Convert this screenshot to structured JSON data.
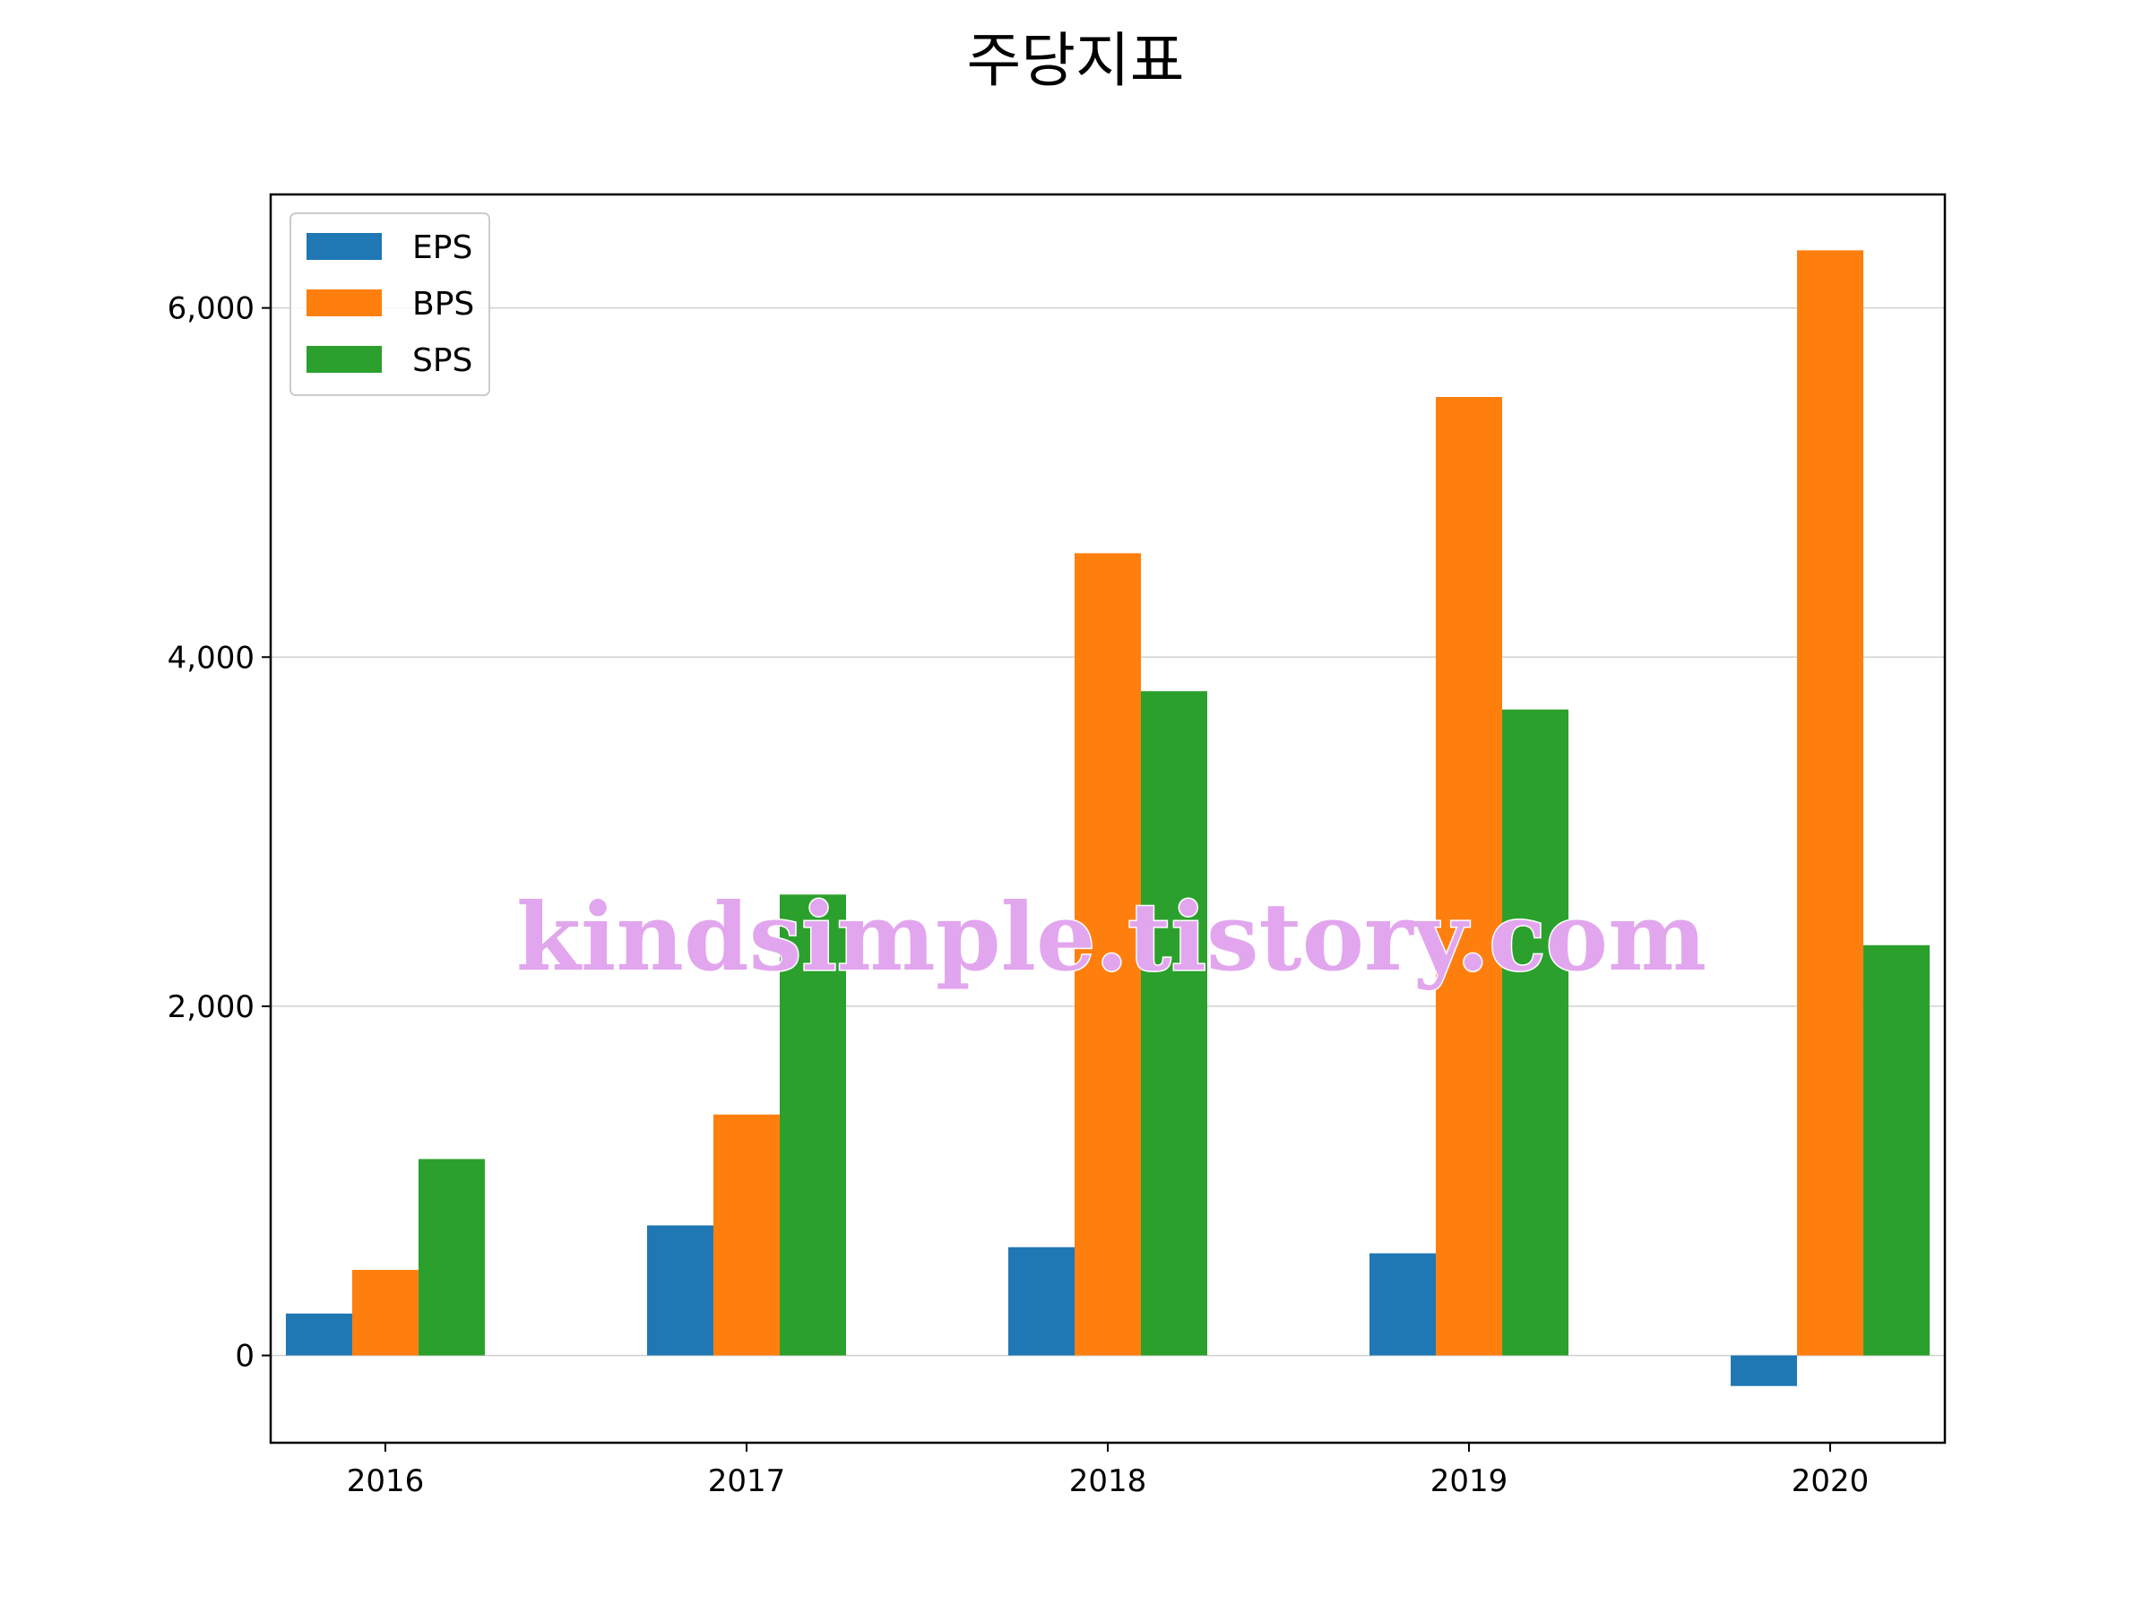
{
  "chart_data": {
    "type": "bar",
    "title": "주당지표",
    "xlabel": "",
    "ylabel": "",
    "categories": [
      "2016",
      "2017",
      "2018",
      "2019",
      "2020"
    ],
    "series": [
      {
        "name": "EPS",
        "color": "#1f77b4",
        "values": [
          240,
          745,
          620,
          585,
          -175
        ]
      },
      {
        "name": "BPS",
        "color": "#ff7f0e",
        "values": [
          490,
          1380,
          4595,
          5490,
          6330
        ]
      },
      {
        "name": "SPS",
        "color": "#2ca02c",
        "values": [
          1125,
          2640,
          3805,
          3700,
          2350
        ]
      }
    ],
    "ylim": [
      -500,
      6650
    ],
    "yticks": [
      0,
      2000,
      4000,
      6000
    ],
    "ytick_labels": [
      "0",
      "2,000",
      "4,000",
      "6,000"
    ],
    "grid": "y",
    "legend": "upper-left"
  },
  "watermark": "kindsimple.tistory.com"
}
